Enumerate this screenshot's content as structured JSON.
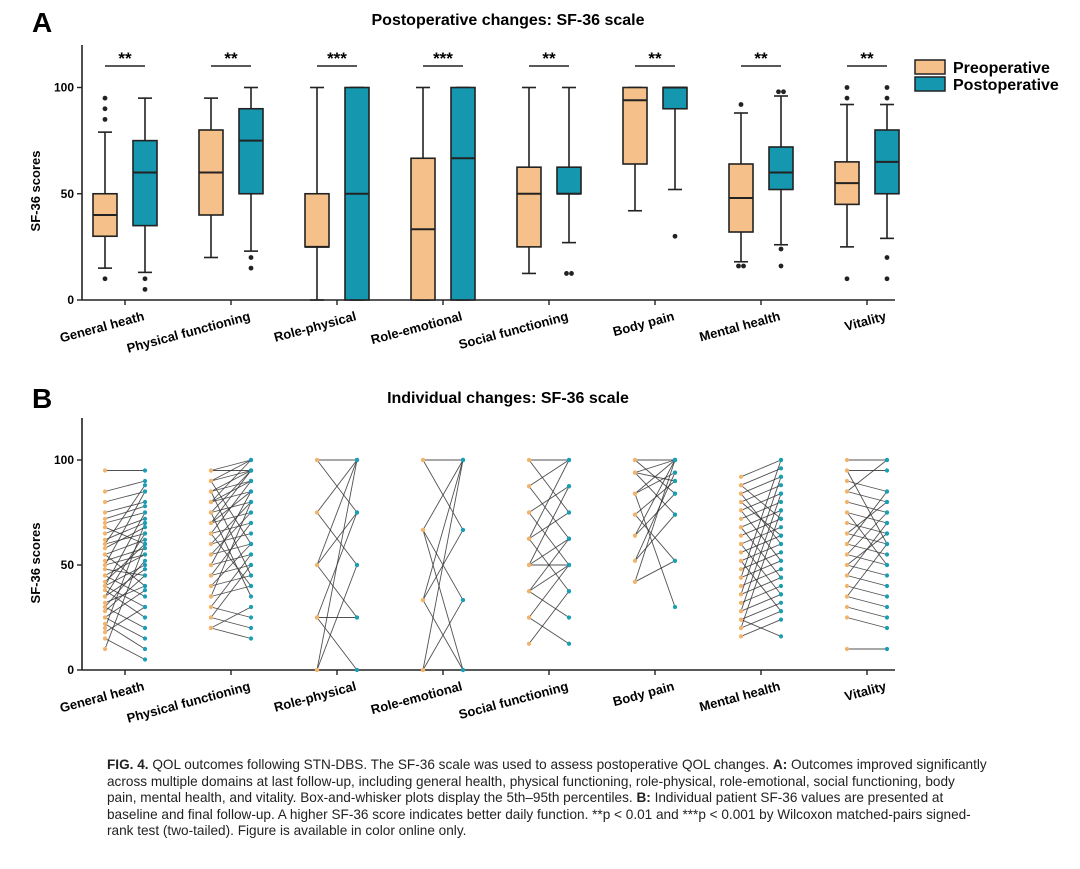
{
  "panelA": {
    "letter": "A",
    "title": "Postoperative changes: SF-36 scale",
    "ylabel": "SF-36 scores",
    "legend": [
      {
        "label": "Preoperative",
        "color": "#F5C08A"
      },
      {
        "label": "Postoperative",
        "color": "#1497AF"
      }
    ]
  },
  "panelB": {
    "letter": "B",
    "title": "Individual changes: SF-36 scale",
    "ylabel": "SF-36 scores"
  },
  "colors": {
    "pre": "#F5C08A",
    "post": "#1497AF",
    "pre_dot": "#F2B46C",
    "post_dot": "#1A9DB5",
    "line": "#333333"
  },
  "chart_data": [
    {
      "type": "box",
      "title": "Postoperative changes: SF-36 scale",
      "ylabel": "SF-36 scores",
      "ylim": [
        0,
        120
      ],
      "yticks": [
        0,
        50,
        100
      ],
      "legend_position": "right",
      "categories": [
        "General heath",
        "Physical functioning",
        "Role-physical",
        "Role-emotional",
        "Social functioning",
        "Body pain",
        "Mental health",
        "Vitality"
      ],
      "significance": [
        "**",
        "**",
        "***",
        "***",
        "**",
        "**",
        "**",
        "**"
      ],
      "series": [
        {
          "name": "Preoperative",
          "boxes": [
            {
              "whislo": 15,
              "q1": 30,
              "med": 40,
              "q3": 50,
              "whishi": 79,
              "fliers": [
                10,
                85,
                90,
                95
              ]
            },
            {
              "whislo": 20,
              "q1": 40,
              "med": 60,
              "q3": 80,
              "whishi": 95,
              "fliers": []
            },
            {
              "whislo": 0,
              "q1": 25,
              "med": 25,
              "q3": 50,
              "whishi": 100,
              "fliers": []
            },
            {
              "whislo": 0,
              "q1": 0,
              "med": 33.3,
              "q3": 66.7,
              "whishi": 100,
              "fliers": []
            },
            {
              "whislo": 12.5,
              "q1": 25,
              "med": 50,
              "q3": 62.5,
              "whishi": 100,
              "fliers": []
            },
            {
              "whislo": 42,
              "q1": 64,
              "med": 94,
              "q3": 100,
              "whishi": 100,
              "fliers": []
            },
            {
              "whislo": 18,
              "q1": 32,
              "med": 48,
              "q3": 64,
              "whishi": 88,
              "fliers": [
                16,
                16,
                92
              ]
            },
            {
              "whislo": 25,
              "q1": 45,
              "med": 55,
              "q3": 65,
              "whishi": 92,
              "fliers": [
                10,
                95,
                100
              ]
            }
          ]
        },
        {
          "name": "Postoperative",
          "boxes": [
            {
              "whislo": 13,
              "q1": 35,
              "med": 60,
              "q3": 75,
              "whishi": 95,
              "fliers": [
                5,
                10
              ]
            },
            {
              "whislo": 23,
              "q1": 50,
              "med": 75,
              "q3": 90,
              "whishi": 100,
              "fliers": [
                15,
                20
              ]
            },
            {
              "whislo": 0,
              "q1": 0,
              "med": 50,
              "q3": 100,
              "whishi": 100,
              "fliers": []
            },
            {
              "whislo": 0,
              "q1": 0,
              "med": 66.7,
              "q3": 100,
              "whishi": 100,
              "fliers": []
            },
            {
              "whislo": 27,
              "q1": 50,
              "med": 50,
              "q3": 62.5,
              "whishi": 100,
              "fliers": [
                12.5,
                12.5
              ]
            },
            {
              "whislo": 52,
              "q1": 90,
              "med": 100,
              "q3": 100,
              "whishi": 100,
              "fliers": [
                30
              ]
            },
            {
              "whislo": 26,
              "q1": 52,
              "med": 60,
              "q3": 72,
              "whishi": 96,
              "fliers": [
                16,
                24,
                98,
                98
              ]
            },
            {
              "whislo": 29,
              "q1": 50,
              "med": 65,
              "q3": 80,
              "whishi": 92,
              "fliers": [
                10,
                20,
                95,
                100
              ]
            }
          ]
        }
      ]
    },
    {
      "type": "line",
      "title": "Individual changes: SF-36 scale",
      "ylabel": "SF-36 scores",
      "ylim": [
        0,
        120
      ],
      "yticks": [
        0,
        50,
        100
      ],
      "categories": [
        "General heath",
        "Physical functioning",
        "Role-physical",
        "Role-emotional",
        "Social functioning",
        "Body pain",
        "Mental health",
        "Vitality"
      ],
      "groups": [
        {
          "pairs": [
            [
              95,
              95
            ],
            [
              85,
              90
            ],
            [
              80,
              85
            ],
            [
              75,
              80
            ],
            [
              72,
              78
            ],
            [
              70,
              75
            ],
            [
              68,
              60
            ],
            [
              65,
              72
            ],
            [
              62,
              70
            ],
            [
              60,
              65
            ],
            [
              58,
              68
            ],
            [
              55,
              40
            ],
            [
              55,
              62
            ],
            [
              52,
              58
            ],
            [
              50,
              55
            ],
            [
              50,
              85
            ],
            [
              48,
              45
            ],
            [
              45,
              55
            ],
            [
              45,
              35
            ],
            [
              42,
              60
            ],
            [
              40,
              50
            ],
            [
              40,
              30
            ],
            [
              38,
              25
            ],
            [
              35,
              48
            ],
            [
              35,
              65
            ],
            [
              32,
              40
            ],
            [
              30,
              52
            ],
            [
              30,
              20
            ],
            [
              28,
              45
            ],
            [
              25,
              38
            ],
            [
              25,
              15
            ],
            [
              22,
              10
            ],
            [
              20,
              70
            ],
            [
              18,
              30
            ],
            [
              15,
              5
            ],
            [
              10,
              60
            ],
            [
              40,
              75
            ],
            [
              60,
              88
            ]
          ]
        },
        {
          "pairs": [
            [
              95,
              95
            ],
            [
              95,
              100
            ],
            [
              90,
              100
            ],
            [
              90,
              95
            ],
            [
              85,
              90
            ],
            [
              85,
              95
            ],
            [
              80,
              85
            ],
            [
              80,
              90
            ],
            [
              75,
              80
            ],
            [
              75,
              95
            ],
            [
              70,
              75
            ],
            [
              70,
              85
            ],
            [
              65,
              70
            ],
            [
              65,
              90
            ],
            [
              60,
              65
            ],
            [
              60,
              80
            ],
            [
              55,
              60
            ],
            [
              55,
              75
            ],
            [
              50,
              55
            ],
            [
              50,
              85
            ],
            [
              45,
              50
            ],
            [
              45,
              70
            ],
            [
              40,
              45
            ],
            [
              40,
              60
            ],
            [
              35,
              40
            ],
            [
              35,
              80
            ],
            [
              30,
              25
            ],
            [
              30,
              55
            ],
            [
              25,
              20
            ],
            [
              25,
              50
            ],
            [
              20,
              15
            ],
            [
              20,
              30
            ],
            [
              85,
              45
            ],
            [
              75,
              35
            ],
            [
              65,
              40
            ],
            [
              90,
              60
            ],
            [
              80,
              100
            ],
            [
              70,
              95
            ]
          ]
        },
        {
          "pairs": [
            [
              100,
              100
            ],
            [
              100,
              75
            ],
            [
              75,
              100
            ],
            [
              75,
              50
            ],
            [
              50,
              100
            ],
            [
              50,
              25
            ],
            [
              25,
              75
            ],
            [
              25,
              0
            ],
            [
              0,
              50
            ],
            [
              0,
              100
            ],
            [
              50,
              75
            ],
            [
              25,
              25
            ]
          ]
        },
        {
          "pairs": [
            [
              100,
              100
            ],
            [
              100,
              66.7
            ],
            [
              66.7,
              100
            ],
            [
              66.7,
              33.3
            ],
            [
              33.3,
              66.7
            ],
            [
              33.3,
              0
            ],
            [
              0,
              100
            ],
            [
              0,
              33.3
            ],
            [
              66.7,
              0
            ],
            [
              33.3,
              100
            ]
          ]
        },
        {
          "pairs": [
            [
              100,
              100
            ],
            [
              100,
              75
            ],
            [
              87.5,
              100
            ],
            [
              87.5,
              62.5
            ],
            [
              75,
              87.5
            ],
            [
              75,
              50
            ],
            [
              62.5,
              75
            ],
            [
              62.5,
              37.5
            ],
            [
              50,
              62.5
            ],
            [
              50,
              50
            ],
            [
              37.5,
              62.5
            ],
            [
              37.5,
              25
            ],
            [
              25,
              50
            ],
            [
              25,
              12.5
            ],
            [
              12.5,
              37.5
            ],
            [
              62.5,
              100
            ],
            [
              50,
              87.5
            ],
            [
              37.5,
              50
            ]
          ]
        },
        {
          "pairs": [
            [
              100,
              100
            ],
            [
              100,
              84
            ],
            [
              94,
              100
            ],
            [
              94,
              74
            ],
            [
              84,
              100
            ],
            [
              84,
              94
            ],
            [
              74,
              90
            ],
            [
              74,
              52
            ],
            [
              64,
              100
            ],
            [
              64,
              84
            ],
            [
              52,
              94
            ],
            [
              52,
              74
            ],
            [
              42,
              52
            ],
            [
              42,
              100
            ],
            [
              84,
              30
            ],
            [
              94,
              90
            ]
          ]
        },
        {
          "pairs": [
            [
              92,
              100
            ],
            [
              88,
              96
            ],
            [
              84,
              92
            ],
            [
              80,
              88
            ],
            [
              76,
              84
            ],
            [
              72,
              80
            ],
            [
              68,
              76
            ],
            [
              64,
              72
            ],
            [
              60,
              68
            ],
            [
              56,
              64
            ],
            [
              52,
              60
            ],
            [
              48,
              56
            ],
            [
              44,
              52
            ],
            [
              40,
              48
            ],
            [
              36,
              44
            ],
            [
              32,
              40
            ],
            [
              28,
              36
            ],
            [
              24,
              32
            ],
            [
              20,
              28
            ],
            [
              16,
              24
            ],
            [
              84,
              60
            ],
            [
              76,
              52
            ],
            [
              68,
              44
            ],
            [
              60,
              36
            ],
            [
              52,
              28
            ],
            [
              20,
              76
            ],
            [
              28,
              84
            ],
            [
              36,
              92
            ],
            [
              44,
              100
            ],
            [
              24,
              16
            ],
            [
              88,
              72
            ],
            [
              80,
              64
            ]
          ]
        },
        {
          "pairs": [
            [
              100,
              100
            ],
            [
              95,
              95
            ],
            [
              90,
              85
            ],
            [
              85,
              80
            ],
            [
              80,
              75
            ],
            [
              75,
              70
            ],
            [
              70,
              65
            ],
            [
              65,
              60
            ],
            [
              60,
              55
            ],
            [
              55,
              50
            ],
            [
              50,
              45
            ],
            [
              45,
              40
            ],
            [
              40,
              35
            ],
            [
              35,
              30
            ],
            [
              30,
              25
            ],
            [
              25,
              20
            ],
            [
              10,
              10
            ],
            [
              95,
              60
            ],
            [
              85,
              100
            ],
            [
              65,
              80
            ],
            [
              55,
              75
            ],
            [
              45,
              70
            ],
            [
              35,
              60
            ],
            [
              75,
              50
            ],
            [
              60,
              85
            ],
            [
              50,
              65
            ]
          ]
        }
      ]
    }
  ],
  "caption": {
    "fig_label": "FIG. 4.",
    "line1_a": " QOL outcomes following STN-DBS. The SF-36 scale was used to assess postoperative QOL changes. ",
    "line1_b": "A:",
    "line1_c": " Outcomes improved significantly across multiple domains at last follow-up, including general health, physical functioning, role-physical, role-emotional, social functioning, body pain, mental health, and vitality. Box-and-whisker plots display the 5th–95th percentiles. ",
    "line2_b": "B:",
    "line2_c": " Individual patient SF-36 values are presented at baseline and final follow-up. A higher SF-36 score indicates better daily function. **p < 0.01 and ***p < 0.001 by Wilcoxon matched-pairs signed-rank test (two-tailed). Figure is available in color online only."
  }
}
